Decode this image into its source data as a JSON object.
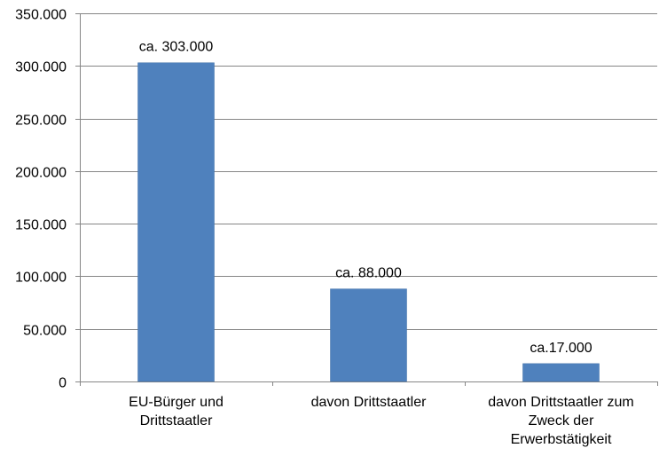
{
  "chart_data": {
    "type": "bar",
    "title": "",
    "xlabel": "",
    "ylabel": "",
    "categories": [
      [
        "EU-Bürger und",
        "Drittstaatler"
      ],
      [
        "davon Drittstaatler"
      ],
      [
        "davon Drittstaatler zum",
        "Zweck der",
        "Erwerbstätigkeit"
      ]
    ],
    "values": [
      303000,
      88000,
      17000
    ],
    "data_labels": [
      "ca. 303.000",
      "ca. 88.000",
      "ca.17.000"
    ],
    "ylim": [
      0,
      350000
    ],
    "yticks": [
      0,
      50000,
      100000,
      150000,
      200000,
      250000,
      300000,
      350000
    ],
    "ytick_labels": [
      "0",
      "50.000",
      "100.000",
      "150.000",
      "200.000",
      "250.000",
      "300.000",
      "350.000"
    ],
    "grid": true,
    "legend": "none",
    "colors": {
      "bar": "#4f81bd",
      "bar_edge": "#3f6fa8",
      "grid": "#868686"
    }
  }
}
